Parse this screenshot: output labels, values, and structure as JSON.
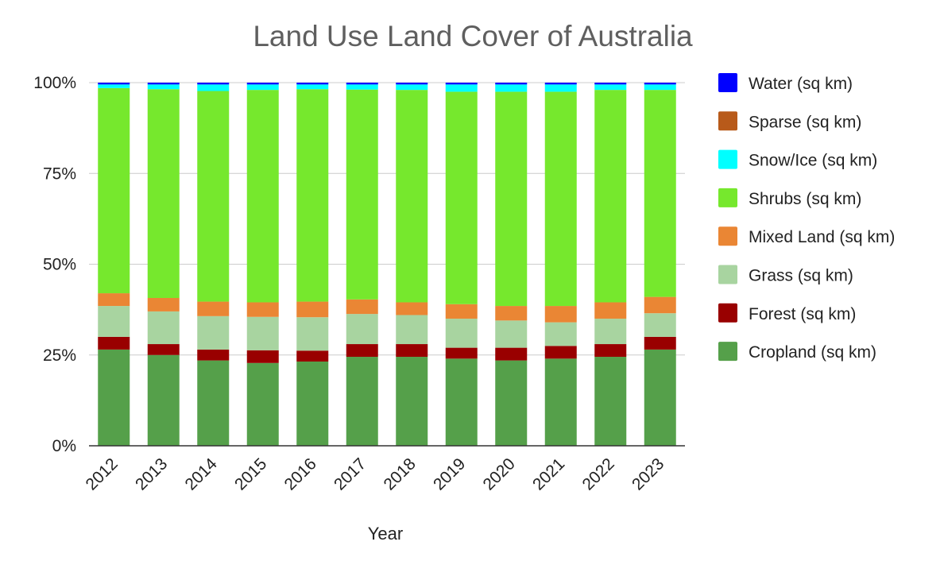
{
  "chart_data": {
    "type": "bar",
    "stacked": true,
    "percent": true,
    "title": "Land Use Land Cover of Australia",
    "xlabel": "Year",
    "ylabel": "",
    "ylim": [
      0,
      100
    ],
    "yticks": [
      "0%",
      "25%",
      "50%",
      "75%",
      "100%"
    ],
    "ytick_values": [
      0,
      25,
      50,
      75,
      100
    ],
    "grid": true,
    "legend_position": "right",
    "categories": [
      "2012",
      "2013",
      "2014",
      "2015",
      "2016",
      "2017",
      "2018",
      "2019",
      "2020",
      "2021",
      "2022",
      "2023"
    ],
    "series": [
      {
        "name": "Cropland (sq km)",
        "color": "#55a04a",
        "values": [
          26.5,
          25.0,
          23.5,
          22.8,
          23.2,
          24.5,
          24.5,
          24.0,
          23.5,
          24.0,
          24.5,
          26.5
        ]
      },
      {
        "name": "Forest (sq km)",
        "color": "#990000",
        "values": [
          3.5,
          3.0,
          3.0,
          3.5,
          3.0,
          3.5,
          3.5,
          3.0,
          3.5,
          3.5,
          3.5,
          3.5
        ]
      },
      {
        "name": "Grass (sq km)",
        "color": "#a8d4a0",
        "values": [
          8.5,
          9.0,
          9.2,
          9.2,
          9.2,
          8.3,
          8.0,
          8.0,
          7.5,
          6.5,
          7.0,
          6.5
        ]
      },
      {
        "name": "Mixed Land (sq km)",
        "color": "#ea8634",
        "values": [
          3.5,
          3.7,
          4.0,
          4.0,
          4.3,
          4.0,
          3.5,
          4.0,
          4.0,
          4.5,
          4.5,
          4.5
        ]
      },
      {
        "name": "Shrubs (sq km)",
        "color": "#76e82d",
        "values": [
          56.5,
          57.5,
          58.0,
          58.5,
          58.5,
          57.8,
          58.5,
          58.5,
          59.0,
          59.0,
          58.5,
          57.0
        ]
      },
      {
        "name": "Snow/Ice (sq km)",
        "color": "#00ffff",
        "values": [
          1.0,
          1.3,
          1.8,
          1.5,
          1.3,
          1.4,
          1.5,
          2.0,
          2.0,
          2.0,
          1.5,
          1.5
        ]
      },
      {
        "name": "Sparse (sq km)",
        "color": "#b85a1a",
        "values": [
          0,
          0,
          0,
          0,
          0,
          0,
          0,
          0,
          0,
          0,
          0,
          0
        ]
      },
      {
        "name": "Water (sq km)",
        "color": "#0000ff",
        "values": [
          0.5,
          0.5,
          0.5,
          0.5,
          0.5,
          0.5,
          0.5,
          0.5,
          0.5,
          0.5,
          0.5,
          0.5
        ]
      }
    ],
    "legend_order": [
      "Water (sq km)",
      "Sparse (sq km)",
      "Snow/Ice (sq km)",
      "Shrubs (sq km)",
      "Mixed Land (sq km)",
      "Grass (sq km)",
      "Forest (sq km)",
      "Cropland (sq km)"
    ]
  }
}
